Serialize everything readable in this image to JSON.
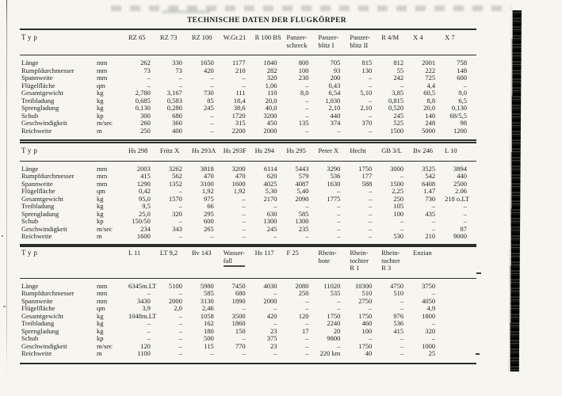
{
  "page": {
    "title": "TECHNISCHE DATEN DER FLUGKÖRPER"
  },
  "tables": [
    {
      "typ_label": "Typ",
      "columns": [
        "RZ 65",
        "RZ 73",
        "RZ 100",
        "W.Gr.21",
        "R 100 BS",
        "Panzer-\nschreck",
        "Panzer-\nblitz I",
        "Panzer-\nblitz II",
        "R 4/M",
        "X 4",
        "X 7"
      ],
      "rows": [
        {
          "label": "Länge",
          "unit": "mm",
          "values": [
            "262",
            "330",
            "1650",
            "1177",
            "1840",
            "800",
            "705",
            "815",
            "812",
            "2001",
            "758"
          ]
        },
        {
          "label": "Rumpfdurchmesser",
          "unit": "mm",
          "values": [
            "73",
            "73",
            "420",
            "210",
            "282",
            "100",
            "93",
            "130",
            "55",
            "222",
            "148"
          ]
        },
        {
          "label": "Spannweite",
          "unit": "mm",
          "values": [
            "–",
            "–",
            "–",
            "–",
            "320",
            "230",
            "200",
            "–",
            "242",
            "725",
            "600"
          ]
        },
        {
          "label": "Flügelfläche",
          "unit": "qm",
          "values": [
            "–",
            "–",
            "–",
            "–",
            "1,06",
            "–",
            "0,43",
            "–",
            "–",
            "4,4",
            "–"
          ]
        },
        {
          "label": "Gesamtgewicht",
          "unit": "kg",
          "values": [
            "2,780",
            "3,167",
            "730",
            "111",
            "110",
            "8,0",
            "6,54",
            "5,10",
            "3,85",
            "60,5",
            "9,0"
          ]
        },
        {
          "label": "Treibladung",
          "unit": "kg",
          "values": [
            "0,685",
            "0,583",
            "85",
            "18,4",
            "20,0",
            "–",
            "1,030",
            "–",
            "0,815",
            "8,8",
            "6,5"
          ]
        },
        {
          "label": "Sprengladung",
          "unit": "kg",
          "values": [
            "0,130",
            "0,280",
            "245",
            "38,6",
            "40,0",
            "–",
            "2,10",
            "2,10",
            "0,520",
            "20,0",
            "0,130"
          ]
        },
        {
          "label": "Schub",
          "unit": "kp",
          "values": [
            "300",
            "680",
            "–",
            "1720",
            "3200",
            "–",
            "440",
            "–",
            "245",
            "140",
            "68/5,5"
          ]
        },
        {
          "label": "Geschwindigkeit",
          "unit": "m/sec",
          "values": [
            "260",
            "360",
            "–",
            "315",
            "450",
            "135",
            "374",
            "370",
            "525",
            "248",
            "98"
          ]
        },
        {
          "label": "Reichweite",
          "unit": "m",
          "values": [
            "250",
            "400",
            "–",
            "2200",
            "2000",
            "–",
            "–",
            "–",
            "1500",
            "5000",
            "1200"
          ]
        }
      ]
    },
    {
      "typ_label": "Typ",
      "columns": [
        "Hs 298",
        "Fritz X",
        "Hs 293A",
        "Hs 293F",
        "Hs 294",
        "Hs 295",
        "Peter X",
        "Hecht",
        "GB 3/L",
        "Bv 246",
        "L 10"
      ],
      "rows": [
        {
          "label": "Länge",
          "unit": "mm",
          "values": [
            "2003",
            "3262",
            "3818",
            "3200",
            "6114",
            "5443",
            "3290",
            "1750",
            "3000",
            "3525",
            "3894"
          ]
        },
        {
          "label": "Rumpfdurchmesser",
          "unit": "mm",
          "values": [
            "415",
            "562",
            "470",
            "470",
            "620",
            "579",
            "536",
            "177",
            "–",
            "542",
            "440"
          ]
        },
        {
          "label": "Spannweite",
          "unit": "mm",
          "values": [
            "1290",
            "1352",
            "3100",
            "1600",
            "4025",
            "4087",
            "1630",
            "588",
            "1500",
            "6408",
            "2500"
          ]
        },
        {
          "label": "Flügelfläche",
          "unit": "qm",
          "values": [
            "0,42",
            "–",
            "1,92",
            "1,92",
            "5,30",
            "5,40",
            "–",
            "–",
            "2,25",
            "1.47",
            "2.06"
          ]
        },
        {
          "label": "Gesamtgewicht",
          "unit": "kg",
          "values": [
            "95,0",
            "1570",
            "975",
            "–",
            "2170",
            "2090",
            "1775",
            "–",
            "250",
            "730",
            "218 o.LT"
          ]
        },
        {
          "label": "Treibladung",
          "unit": "kg",
          "values": [
            "9,5",
            "–",
            "66",
            "–",
            "–",
            "–",
            "–",
            "–",
            "105",
            "–",
            "–"
          ]
        },
        {
          "label": "Sprengladung",
          "unit": "kg",
          "values": [
            "25,0",
            "320",
            "295",
            "–",
            "630",
            "585",
            "–",
            "–",
            "100",
            "435",
            "–"
          ]
        },
        {
          "label": "Schub",
          "unit": "kp",
          "values": [
            "150/50",
            "–",
            "600",
            "–",
            "1300",
            "1300",
            "–",
            "–",
            "–",
            "–",
            "–"
          ]
        },
        {
          "label": "Geschwindigkeit",
          "unit": "m/sec",
          "values": [
            "234",
            "343",
            "265",
            "–",
            "245",
            "235",
            "–",
            "–",
            "–",
            "–",
            "87"
          ]
        },
        {
          "label": "Reichweite",
          "unit": "m",
          "values": [
            "1600",
            "–",
            "–",
            "–",
            "–",
            "–",
            "–",
            "–",
            "530",
            "210",
            "9000"
          ]
        }
      ]
    },
    {
      "typ_label": "Typ",
      "underlined_column_index": 3,
      "columns": [
        "L 11",
        "LT 9,2",
        "Bv 143",
        "Wasser-\nfall",
        "Hs 117",
        "F 25",
        "Rhein-\nbote",
        "Rhein-\ntochter\nR 1",
        "Rhein-\ntochter\nR 3",
        "Enzian"
      ],
      "rows": [
        {
          "label": "Länge",
          "unit": "mm",
          "values": [
            "6345m.LT",
            "5100",
            "5980",
            "7450",
            "4030",
            "2080",
            "11020",
            "10300",
            "4750",
            "3750"
          ]
        },
        {
          "label": "Rumpfdurchmesser",
          "unit": "mm",
          "values": [
            "–",
            "–",
            "585",
            "680",
            "–",
            "250",
            "535",
            "510",
            "510",
            "–"
          ]
        },
        {
          "label": "Spannweite",
          "unit": "mm",
          "values": [
            "3430",
            "2000",
            "3130",
            "1890",
            "2000",
            "–",
            "–",
            "2750",
            "–",
            "4050"
          ]
        },
        {
          "label": "Flügelfläche",
          "unit": "qm",
          "values": [
            "3,9",
            "2,0",
            "2,46",
            "–",
            "–",
            "–",
            "–",
            "–",
            "–",
            "4,9"
          ]
        },
        {
          "label": "Gesamtgewicht",
          "unit": "kg",
          "values": [
            "1048m.LT",
            "–",
            "1058",
            "3500",
            "420",
            "120",
            "1750",
            "1750",
            "976",
            "1800"
          ]
        },
        {
          "label": "Treibladung",
          "unit": "kg",
          "values": [
            "–",
            "–",
            "162",
            "1860",
            "–",
            "–",
            "2240",
            "460",
            "536",
            "–"
          ]
        },
        {
          "label": "Sprengladung",
          "unit": "kg",
          "values": [
            "–",
            "–",
            "180",
            "150",
            "23",
            "17",
            "20",
            "100",
            "415",
            "320"
          ]
        },
        {
          "label": "Schub",
          "unit": "kp",
          "values": [
            "–",
            "–",
            "500",
            "–",
            "375",
            "–",
            "9800",
            "–",
            "–",
            "–"
          ]
        },
        {
          "label": "Geschwindigkeit",
          "unit": "m/sec",
          "values": [
            "120",
            "–",
            "115",
            "770",
            "23",
            "–",
            "–",
            "1750",
            "–",
            "1000"
          ]
        },
        {
          "label": "Reichweite",
          "unit": "m",
          "values": [
            "1100",
            "–",
            "–",
            "–",
            "–",
            "–",
            "220 km",
            "40",
            "–",
            "25"
          ]
        }
      ]
    }
  ]
}
